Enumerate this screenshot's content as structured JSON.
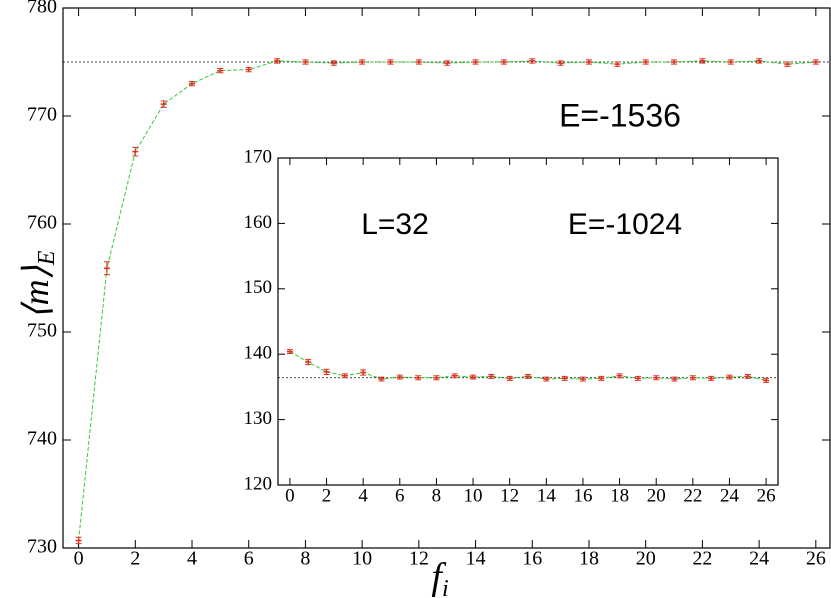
{
  "chart_data": [
    {
      "type": "line",
      "xlabel": {
        "text": "f",
        "sub": "i"
      },
      "ylabel": {
        "text": "⟨m⟩",
        "sub": "E"
      },
      "annotations": [
        "E=-1536"
      ],
      "x": [
        0,
        1,
        2,
        3,
        4,
        5,
        6,
        7,
        8,
        9,
        10,
        11,
        12,
        13,
        14,
        15,
        16,
        17,
        18,
        19,
        20,
        21,
        22,
        23,
        24,
        25,
        26
      ],
      "series": [
        {
          "color": "#33cc33",
          "marker_color": "#dd3322",
          "values": [
            730.7,
            755.9,
            766.7,
            771.1,
            773.0,
            774.2,
            774.3,
            775.1,
            775.0,
            774.9,
            775.0,
            775.0,
            775.0,
            774.9,
            775.0,
            775.0,
            775.1,
            774.9,
            775.0,
            774.8,
            775.0,
            775.0,
            775.1,
            775.0,
            775.1,
            774.8,
            775.0
          ],
          "errors": [
            0.3,
            0.6,
            0.4,
            0.3,
            0.2,
            0.2,
            0.2,
            0.2,
            0.2,
            0.2,
            0.2,
            0.2,
            0.2,
            0.2,
            0.2,
            0.2,
            0.2,
            0.2,
            0.2,
            0.2,
            0.2,
            0.2,
            0.2,
            0.2,
            0.2,
            0.2,
            0.2
          ]
        }
      ],
      "hline": 775.0,
      "xlim": [
        -0.55,
        26.5
      ],
      "xticks": [
        0,
        2,
        4,
        6,
        8,
        10,
        12,
        14,
        16,
        18,
        20,
        22,
        24,
        26
      ],
      "ylim": [
        730,
        780
      ],
      "yticks": [
        730,
        740,
        750,
        760,
        770,
        780
      ]
    },
    {
      "type": "line",
      "annotations": [
        "L=32",
        "E=-1024"
      ],
      "x": [
        0,
        1,
        2,
        3,
        4,
        5,
        6,
        7,
        8,
        9,
        10,
        11,
        12,
        13,
        14,
        15,
        16,
        17,
        18,
        19,
        20,
        21,
        22,
        23,
        24,
        25,
        26
      ],
      "series": [
        {
          "color": "#33cc33",
          "marker_color": "#dd3322",
          "values": [
            140.4,
            138.8,
            137.3,
            136.7,
            137.2,
            136.2,
            136.5,
            136.4,
            136.4,
            136.7,
            136.5,
            136.6,
            136.3,
            136.6,
            136.2,
            136.3,
            136.2,
            136.3,
            136.7,
            136.3,
            136.4,
            136.2,
            136.4,
            136.3,
            136.5,
            136.6,
            136.0
          ],
          "errors": [
            0.3,
            0.4,
            0.4,
            0.3,
            0.4,
            0.3,
            0.3,
            0.3,
            0.3,
            0.3,
            0.3,
            0.3,
            0.3,
            0.3,
            0.3,
            0.3,
            0.3,
            0.3,
            0.3,
            0.3,
            0.3,
            0.3,
            0.3,
            0.3,
            0.3,
            0.3,
            0.3
          ]
        }
      ],
      "hline": 136.4,
      "xlim": [
        -0.65,
        26.65
      ],
      "xticks": [
        0,
        2,
        4,
        6,
        8,
        10,
        12,
        14,
        16,
        18,
        20,
        22,
        24,
        26
      ],
      "ylim": [
        120,
        170
      ],
      "yticks": [
        120,
        130,
        140,
        150,
        160,
        170
      ]
    }
  ]
}
